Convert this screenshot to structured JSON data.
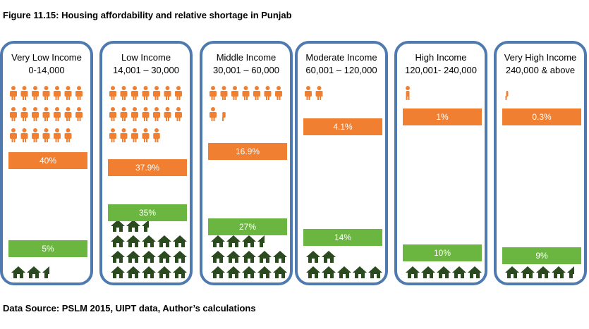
{
  "title": "Figure 11.15: Housing affordability and relative shortage in Punjab",
  "source": "Data Source: PSLM 2015, UIPT data, Author’s calculations",
  "colors": {
    "frame": "#4e7ab0",
    "orange": "#f07f32",
    "green": "#6bb640",
    "house": "#2b4a1f"
  },
  "icons": {
    "person": "person-icon",
    "house": "house-icon"
  },
  "chart_data": {
    "type": "bar",
    "categories": [
      "Very Low Income",
      "Low Income",
      "Middle Income",
      "Moderate Income",
      "High Income",
      "Very High Income"
    ],
    "ranges": [
      "0-14,000",
      "14,001 – 30,000",
      "30,001 – 60,000",
      "60,001 – 120,000",
      "120,001- 240,000",
      "240,000 & above"
    ],
    "series": [
      {
        "values": [
          40,
          37.9,
          16.9,
          4.1,
          1,
          0.3
        ],
        "labels": [
          "40%",
          "37.9%",
          "16.9%",
          "4.1%",
          "1%",
          "0.3%"
        ],
        "color": "#f07f32"
      },
      {
        "values": [
          5,
          35,
          27,
          14,
          10,
          9
        ],
        "labels": [
          "5%",
          "35%",
          "27%",
          "14%",
          "10%",
          "9%"
        ],
        "color": "#6bb640"
      }
    ],
    "ylim": [
      0,
      40
    ]
  }
}
